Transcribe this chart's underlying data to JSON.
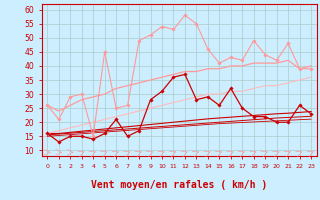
{
  "x": [
    0,
    1,
    2,
    3,
    4,
    5,
    6,
    7,
    8,
    9,
    10,
    11,
    12,
    13,
    14,
    15,
    16,
    17,
    18,
    19,
    20,
    21,
    22,
    23
  ],
  "bg_color": "#cceeff",
  "grid_color": "#aacccc",
  "xlabel": "Vent moyen/en rafales ( km/h )",
  "xlabel_color": "#cc0000",
  "xlabel_fontsize": 7,
  "tick_color": "#cc0000",
  "axis_color": "#cc0000",
  "ylim": [
    8,
    62
  ],
  "yticks": [
    10,
    15,
    20,
    25,
    30,
    35,
    40,
    45,
    50,
    55,
    60
  ],
  "series": [
    {
      "y": [
        26,
        21,
        29,
        30,
        15,
        45,
        25,
        26,
        49,
        51,
        54,
        53,
        58,
        55,
        46,
        41,
        43,
        42,
        49,
        44,
        42,
        48,
        39,
        39
      ],
      "color": "#ff9999",
      "lw": 0.8,
      "marker": "D",
      "ms": 1.8,
      "zorder": 3
    },
    {
      "y": [
        16,
        13,
        15,
        15,
        14,
        16,
        21,
        15,
        17,
        28,
        31,
        36,
        37,
        28,
        29,
        26,
        32,
        25,
        22,
        22,
        20,
        20,
        26,
        23
      ],
      "color": "#cc0000",
      "lw": 0.9,
      "marker": "D",
      "ms": 1.8,
      "zorder": 4
    },
    {
      "y": [
        16,
        16,
        16.4,
        16.8,
        17.2,
        17.6,
        18,
        18.4,
        18.8,
        19.2,
        19.6,
        20,
        20.4,
        20.8,
        21.2,
        21.5,
        21.8,
        22.1,
        22.4,
        22.7,
        23,
        23.2,
        23.5,
        23.8
      ],
      "color": "#cc0000",
      "lw": 0.8,
      "marker": null,
      "ms": 0,
      "zorder": 2,
      "linestyle": "-"
    },
    {
      "y": [
        15.5,
        15.8,
        16.1,
        16.4,
        16.7,
        17,
        17.3,
        17.6,
        17.9,
        18.2,
        18.5,
        18.8,
        19.1,
        19.4,
        19.7,
        20,
        20.3,
        20.6,
        20.9,
        21.2,
        21.5,
        21.7,
        21.9,
        22.1
      ],
      "color": "#cc0000",
      "lw": 0.7,
      "marker": null,
      "ms": 0,
      "zorder": 2,
      "linestyle": "-"
    },
    {
      "y": [
        15,
        15.3,
        15.6,
        15.9,
        16.2,
        16.5,
        16.8,
        17.1,
        17.4,
        17.7,
        18,
        18.3,
        18.6,
        18.9,
        19.2,
        19.5,
        19.7,
        19.9,
        20.1,
        20.3,
        20.5,
        20.7,
        20.9,
        21.1
      ],
      "color": "#cc0000",
      "lw": 0.6,
      "marker": null,
      "ms": 0,
      "zorder": 2,
      "linestyle": "-"
    },
    {
      "y": [
        26,
        24,
        26,
        28,
        29,
        30,
        32,
        33,
        34,
        35,
        36,
        37,
        38,
        38,
        39,
        39,
        40,
        40,
        41,
        41,
        41,
        42,
        39,
        40
      ],
      "color": "#ff9999",
      "lw": 0.9,
      "marker": null,
      "ms": 0,
      "zorder": 2,
      "linestyle": "-"
    },
    {
      "y": [
        16,
        17,
        18,
        19,
        20,
        21,
        22,
        23,
        24,
        25,
        26,
        27,
        28,
        29,
        30,
        30,
        31,
        31,
        32,
        33,
        33,
        34,
        35,
        36
      ],
      "color": "#ffbbbb",
      "lw": 0.8,
      "marker": null,
      "ms": 0,
      "zorder": 2,
      "linestyle": "-"
    }
  ]
}
